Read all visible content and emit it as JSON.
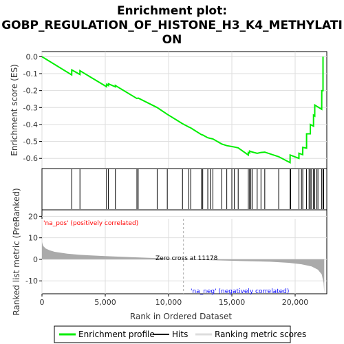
{
  "chart_data": {
    "type": "line",
    "title_line1": "Enrichment plot:",
    "title_line2": "GOBP_REGULATION_OF_HISTONE_H3_K4_METHYLATI",
    "title_line3": "ON",
    "es_ylabel": "Enrichment score (ES)",
    "metric_ylabel": "Ranked list metric (PreRanked)",
    "xlabel": "Rank in Ordered Dataset",
    "x_ticks": [
      "0",
      "5,000",
      "10,000",
      "15,000",
      "20,000"
    ],
    "es_ticks": [
      "0.0",
      "-0.1",
      "-0.2",
      "-0.3",
      "-0.4",
      "-0.5",
      "-0.6"
    ],
    "metric_ticks": [
      "20",
      "10",
      "0",
      "-10"
    ],
    "xlim": [
      0,
      22500
    ],
    "es_ylim": [
      -0.66,
      0.03
    ],
    "metric_ylim": [
      -16,
      23
    ],
    "pos_label": "'na_pos' (positively correlated)",
    "neg_label": "'na_neg' (negatively correlated)",
    "zero_cross_label": "Zero cross at 11178",
    "zero_cross": 11178,
    "n_genes": 22300,
    "legend": [
      "Enrichment profile",
      "Hits",
      "Ranking metric scores"
    ],
    "colors": {
      "es_line": "#00ee00",
      "hits": "#000000",
      "metric_fill": "#aaaaaa",
      "pos_text": "#ff0000",
      "neg_text": "#0000ff",
      "zero_line": "#aaaaaa"
    },
    "hits": [
      2350,
      3000,
      5100,
      5250,
      5800,
      7500,
      7600,
      9100,
      9900,
      11100,
      11600,
      11750,
      12600,
      12700,
      13100,
      13300,
      13500,
      14200,
      14600,
      15000,
      15200,
      15500,
      16300,
      16400,
      16500,
      16600,
      17000,
      17300,
      17600,
      18700,
      19600,
      19650,
      20300,
      20500,
      20600,
      20900,
      21100,
      21200,
      21300,
      21450,
      21550,
      21700,
      21800,
      22100,
      22200,
      22250
    ],
    "es_points": [
      [
        0,
        0.0
      ],
      [
        2350,
        -0.107
      ],
      [
        2351,
        -0.078
      ],
      [
        3000,
        -0.105
      ],
      [
        3001,
        -0.083
      ],
      [
        5100,
        -0.177
      ],
      [
        5101,
        -0.163
      ],
      [
        5250,
        -0.17
      ],
      [
        5251,
        -0.16
      ],
      [
        5800,
        -0.178
      ],
      [
        5801,
        -0.17
      ],
      [
        7500,
        -0.247
      ],
      [
        7600,
        -0.244
      ],
      [
        9100,
        -0.3
      ],
      [
        9900,
        -0.34
      ],
      [
        11100,
        -0.395
      ],
      [
        11600,
        -0.415
      ],
      [
        11750,
        -0.42
      ],
      [
        12600,
        -0.46
      ],
      [
        12700,
        -0.462
      ],
      [
        13100,
        -0.478
      ],
      [
        13300,
        -0.482
      ],
      [
        13500,
        -0.485
      ],
      [
        14200,
        -0.515
      ],
      [
        14600,
        -0.525
      ],
      [
        15000,
        -0.53
      ],
      [
        15200,
        -0.533
      ],
      [
        15500,
        -0.538
      ],
      [
        16300,
        -0.58
      ],
      [
        16301,
        -0.565
      ],
      [
        16400,
        -0.568
      ],
      [
        16401,
        -0.557
      ],
      [
        16600,
        -0.562
      ],
      [
        17000,
        -0.57
      ],
      [
        17300,
        -0.565
      ],
      [
        17600,
        -0.563
      ],
      [
        18700,
        -0.59
      ],
      [
        19600,
        -0.625
      ],
      [
        19601,
        -0.58
      ],
      [
        20300,
        -0.6
      ],
      [
        20301,
        -0.57
      ],
      [
        20600,
        -0.578
      ],
      [
        20601,
        -0.535
      ],
      [
        20900,
        -0.54
      ],
      [
        20901,
        -0.455
      ],
      [
        21200,
        -0.455
      ],
      [
        21201,
        -0.4
      ],
      [
        21450,
        -0.41
      ],
      [
        21451,
        -0.345
      ],
      [
        21550,
        -0.35
      ],
      [
        21551,
        -0.285
      ],
      [
        22100,
        -0.31
      ],
      [
        22101,
        -0.2
      ],
      [
        22200,
        -0.2
      ],
      [
        22201,
        0.0
      ]
    ],
    "metric_points": [
      [
        0,
        8.0
      ],
      [
        100,
        6.2
      ],
      [
        300,
        5.0
      ],
      [
        600,
        4.2
      ],
      [
        1000,
        3.5
      ],
      [
        2000,
        2.6
      ],
      [
        3000,
        2.1
      ],
      [
        5000,
        1.5
      ],
      [
        7000,
        1.0
      ],
      [
        9000,
        0.6
      ],
      [
        10500,
        0.2
      ],
      [
        11178,
        0.0
      ],
      [
        12500,
        -0.3
      ],
      [
        14000,
        -0.5
      ],
      [
        16000,
        -0.8
      ],
      [
        18000,
        -1.1
      ],
      [
        19500,
        -1.6
      ],
      [
        20500,
        -2.3
      ],
      [
        21300,
        -3.3
      ],
      [
        21800,
        -4.8
      ],
      [
        22100,
        -7.0
      ],
      [
        22250,
        -11.0
      ],
      [
        22300,
        -15.5
      ]
    ],
    "heat_segments": [
      [
        "#e8242a",
        0,
        700
      ],
      [
        "#f24a4a",
        700,
        2300
      ],
      [
        "#f76a6a",
        2300,
        3800
      ],
      [
        "#f98c8c",
        3800,
        5500
      ],
      [
        "#fba8a8",
        5500,
        7300
      ],
      [
        "#fcc8c8",
        7300,
        9200
      ],
      [
        "#fde0e0",
        9200,
        11178
      ],
      [
        "#e2e2f8",
        11178,
        13200
      ],
      [
        "#cacaf6",
        13200,
        15000
      ],
      [
        "#adadf2",
        15000,
        17000
      ],
      [
        "#8c8cf0",
        17000,
        18400
      ],
      [
        "#6a6aec",
        18400,
        20000
      ],
      [
        "#4848e6",
        20000,
        21400
      ],
      [
        "#2020d8",
        21400,
        22300
      ]
    ]
  }
}
